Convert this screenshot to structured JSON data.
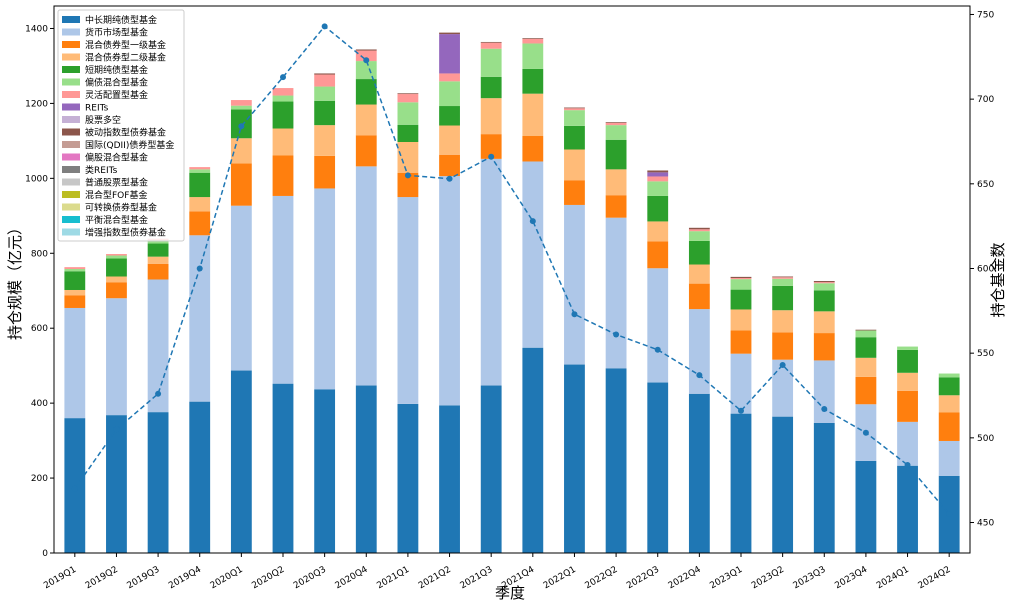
{
  "chart_data": {
    "type": "bar",
    "stacked": true,
    "xlabel": "季度",
    "ylabel": "持仓规模（亿元）",
    "y2label": "持仓基金数",
    "ylim": [
      0,
      1460
    ],
    "y2lim": [
      432,
      755
    ],
    "yticks": [
      0,
      200,
      400,
      600,
      800,
      1000,
      1200,
      1400
    ],
    "y2ticks": [
      450,
      500,
      550,
      600,
      650,
      700,
      750
    ],
    "legend_position": "upper-left",
    "categories": [
      "2019Q1",
      "2019Q2",
      "2019Q3",
      "2019Q4",
      "2020Q1",
      "2020Q2",
      "2020Q3",
      "2020Q4",
      "2021Q1",
      "2021Q2",
      "2021Q3",
      "2021Q4",
      "2022Q1",
      "2022Q2",
      "2022Q3",
      "2022Q4",
      "2023Q1",
      "2023Q2",
      "2023Q3",
      "2023Q4",
      "2024Q1",
      "2024Q2"
    ],
    "series": [
      {
        "name": "中长期纯债型基金",
        "color": "#1f77b4",
        "values": [
          360,
          368,
          376,
          404,
          487,
          452,
          437,
          447,
          398,
          394,
          447,
          548,
          503,
          493,
          455,
          425,
          372,
          364,
          347,
          246,
          233,
          206
        ]
      },
      {
        "name": "货币市场型基金",
        "color": "#aec7e8",
        "values": [
          294,
          312,
          354,
          444,
          440,
          501,
          536,
          585,
          552,
          612,
          605,
          497,
          426,
          402,
          305,
          226,
          160,
          152,
          167,
          151,
          117,
          93
        ]
      },
      {
        "name": "混合债券型一级基金",
        "color": "#ff7f0e",
        "values": [
          34,
          42,
          42,
          64,
          113,
          108,
          87,
          83,
          65,
          57,
          66,
          68,
          66,
          60,
          72,
          68,
          62,
          73,
          73,
          73,
          83,
          76
        ]
      },
      {
        "name": "混合债券型二级基金",
        "color": "#ffbb78",
        "values": [
          14,
          16,
          19,
          38,
          67,
          72,
          82,
          82,
          82,
          78,
          96,
          113,
          82,
          69,
          53,
          51,
          56,
          59,
          58,
          51,
          48,
          46
        ]
      },
      {
        "name": "短期纯债型基金",
        "color": "#2ca02c",
        "values": [
          50,
          48,
          35,
          65,
          77,
          72,
          65,
          68,
          46,
          52,
          57,
          66,
          63,
          79,
          68,
          63,
          53,
          65,
          56,
          55,
          61,
          48
        ]
      },
      {
        "name": "偏债混合型基金",
        "color": "#98df8a",
        "values": [
          6,
          8,
          9,
          9,
          10,
          16,
          38,
          48,
          60,
          66,
          75,
          68,
          42,
          39,
          39,
          26,
          28,
          19,
          19,
          18,
          9,
          10
        ]
      },
      {
        "name": "灵活配置型基金",
        "color": "#ff9896",
        "values": [
          5,
          4,
          4,
          6,
          15,
          20,
          32,
          28,
          22,
          21,
          16,
          12,
          5,
          6,
          13,
          5,
          3,
          4,
          3,
          0,
          0,
          0
        ]
      },
      {
        "name": "REITs",
        "color": "#9467bd",
        "values": [
          0,
          0,
          0,
          0,
          0,
          0,
          0,
          0,
          0,
          105,
          0,
          0,
          0,
          0,
          11,
          0,
          0,
          0,
          0,
          0,
          0,
          0
        ]
      },
      {
        "name": "股票多空",
        "color": "#c5b0d5",
        "values": [
          0,
          0,
          0,
          0,
          0,
          0,
          0,
          0,
          0,
          0,
          0,
          0,
          0,
          0,
          0,
          0,
          0,
          0,
          0,
          0,
          0,
          0
        ]
      },
      {
        "name": "被动指数型债券基金",
        "color": "#8c564b",
        "values": [
          0,
          0,
          0,
          0,
          0,
          0,
          3,
          3,
          2,
          4,
          2,
          2,
          2,
          2,
          5,
          4,
          3,
          2,
          3,
          2,
          0,
          0
        ]
      },
      {
        "name": "国际(QDII)债券型基金",
        "color": "#c49c94",
        "values": [
          0,
          0,
          0,
          0,
          0,
          0,
          0,
          0,
          0,
          0,
          0,
          0,
          0,
          0,
          0,
          0,
          0,
          0,
          0,
          0,
          0,
          0
        ]
      },
      {
        "name": "偏股混合型基金",
        "color": "#e377c2",
        "values": [
          0,
          0,
          0,
          0,
          0,
          0,
          0,
          0,
          0,
          0,
          0,
          0,
          0,
          0,
          0,
          0,
          0,
          0,
          0,
          0,
          0,
          0
        ]
      },
      {
        "name": "类REITs",
        "color": "#7f7f7f",
        "values": [
          0,
          0,
          0,
          0,
          0,
          0,
          0,
          0,
          0,
          0,
          0,
          0,
          0,
          0,
          0,
          0,
          0,
          0,
          0,
          0,
          0,
          0
        ]
      },
      {
        "name": "普通股票型基金",
        "color": "#c7c7c7",
        "values": [
          0,
          0,
          0,
          0,
          0,
          0,
          0,
          0,
          0,
          0,
          0,
          0,
          0,
          0,
          0,
          0,
          0,
          0,
          0,
          0,
          0,
          0
        ]
      },
      {
        "name": "混合型FOF基金",
        "color": "#bcbd22",
        "values": [
          0,
          0,
          0,
          0,
          0,
          0,
          0,
          0,
          0,
          0,
          0,
          0,
          0,
          0,
          0,
          0,
          0,
          0,
          0,
          0,
          0,
          0
        ]
      },
      {
        "name": "可转换债券型基金",
        "color": "#dbdb8d",
        "values": [
          0,
          0,
          0,
          0,
          0,
          0,
          0,
          0,
          0,
          0,
          0,
          0,
          0,
          0,
          0,
          0,
          0,
          0,
          0,
          0,
          0,
          0
        ]
      },
      {
        "name": "平衡混合型基金",
        "color": "#17becf",
        "values": [
          0,
          0,
          0,
          0,
          0,
          0,
          0,
          0,
          0,
          0,
          0,
          0,
          0,
          0,
          0,
          0,
          0,
          0,
          0,
          0,
          0,
          0
        ]
      },
      {
        "name": "增强指数型债券基金",
        "color": "#9edae5",
        "values": [
          0,
          0,
          0,
          0,
          0,
          0,
          0,
          0,
          0,
          0,
          0,
          0,
          0,
          0,
          0,
          0,
          0,
          0,
          0,
          0,
          0,
          0
        ]
      }
    ],
    "line_series": {
      "axis": "right",
      "color": "#1f77b4",
      "style": "dashed",
      "marker": "circle",
      "values": [
        470,
        505,
        526,
        600,
        684,
        713,
        743,
        723,
        655,
        653,
        666,
        628,
        573,
        561,
        552,
        537,
        516,
        543,
        517,
        503,
        484,
        455
      ]
    }
  }
}
